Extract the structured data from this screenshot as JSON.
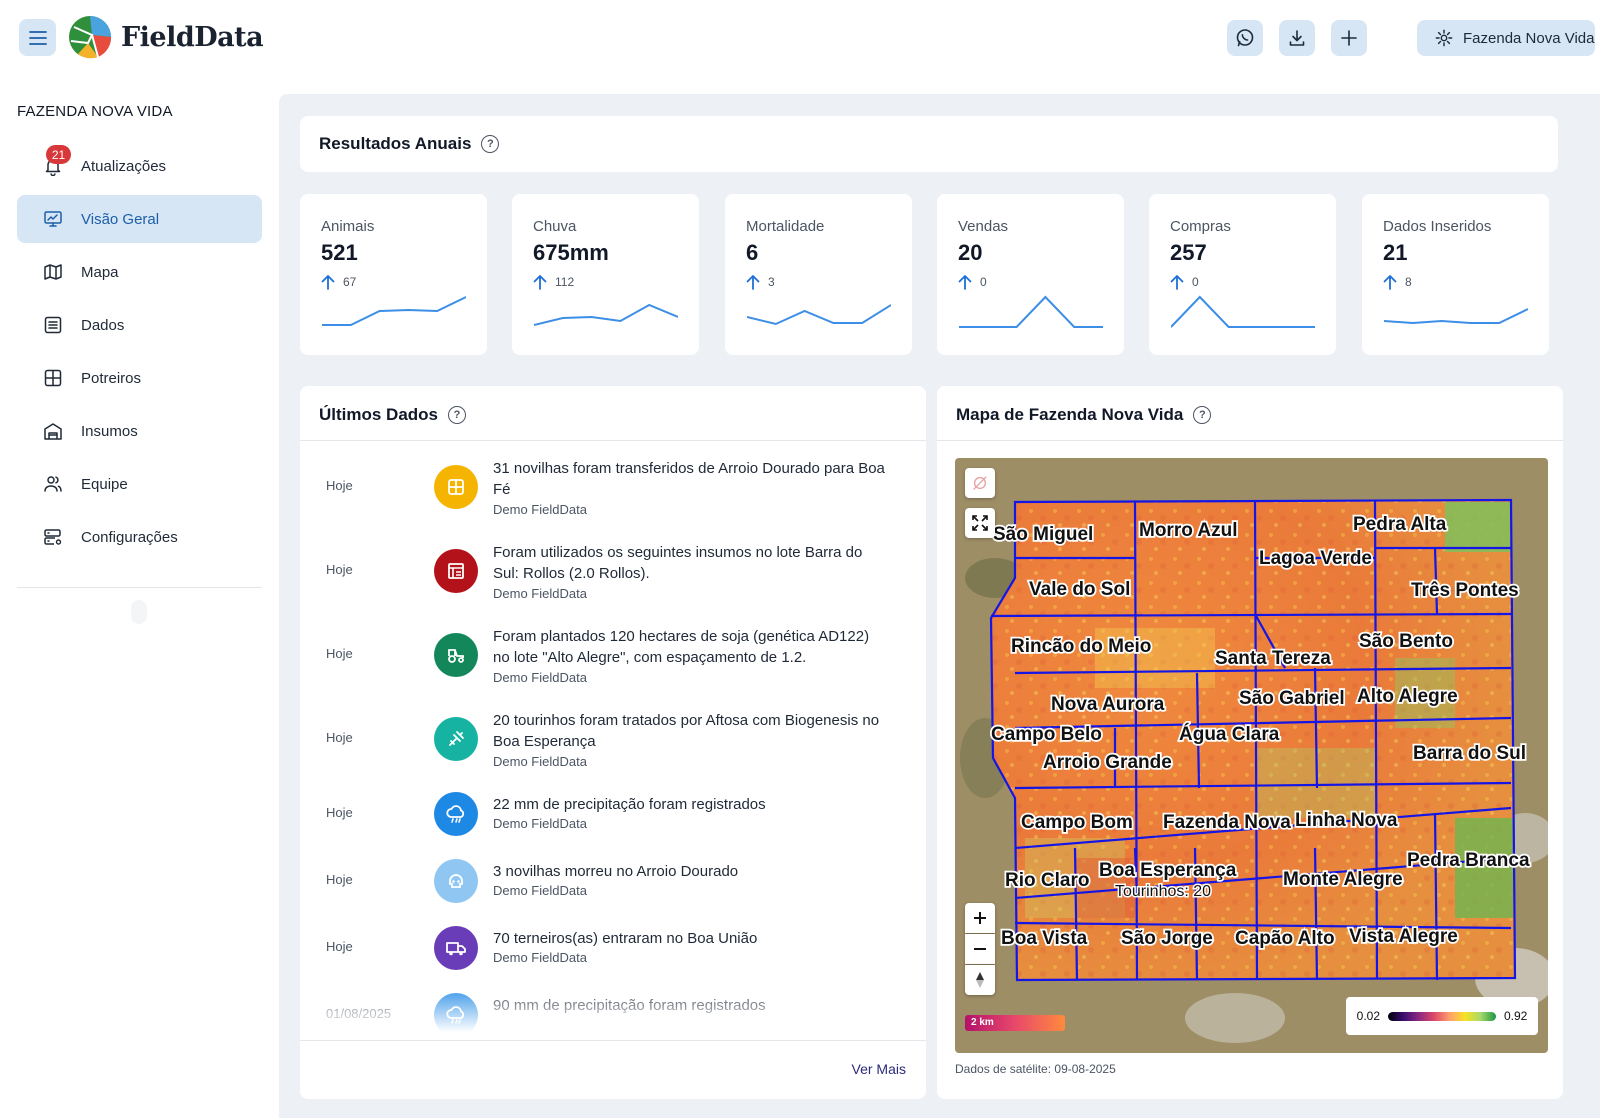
{
  "app": {
    "brand": "FieldData"
  },
  "header": {
    "farm_button_label": "Fazenda Nova Vida"
  },
  "sidebar": {
    "title": "FAZENDA NOVA VIDA",
    "updates_badge": "21",
    "items": [
      {
        "label": "Atualizações",
        "icon": "bell-icon"
      },
      {
        "label": "Visão Geral",
        "icon": "monitor-chart-icon",
        "active": true
      },
      {
        "label": "Mapa",
        "icon": "map-icon"
      },
      {
        "label": "Dados",
        "icon": "list-icon"
      },
      {
        "label": "Potreiros",
        "icon": "grid-icon"
      },
      {
        "label": "Insumos",
        "icon": "warehouse-icon"
      },
      {
        "label": "Equipe",
        "icon": "users-icon"
      },
      {
        "label": "Configurações",
        "icon": "server-gear-icon"
      }
    ]
  },
  "annual": {
    "title": "Resultados Anuais",
    "stats": [
      {
        "label": "Animais",
        "value": "521",
        "delta": "67",
        "trend": [
          2,
          2,
          16,
          17,
          16,
          30
        ]
      },
      {
        "label": "Chuva",
        "value": "675mm",
        "delta": "112",
        "trend": [
          2,
          9,
          10,
          6,
          22,
          10
        ]
      },
      {
        "label": "Mortalidade",
        "value": "6",
        "delta": "3",
        "trend": [
          10,
          3,
          16,
          4,
          4,
          22
        ]
      },
      {
        "label": "Vendas",
        "value": "20",
        "delta": "0",
        "trend": [
          0,
          0,
          0,
          30,
          0,
          0
        ]
      },
      {
        "label": "Compras",
        "value": "257",
        "delta": "0",
        "trend": [
          0,
          30,
          0,
          0,
          0,
          0
        ]
      },
      {
        "label": "Dados Inseridos",
        "value": "21",
        "delta": "8",
        "trend": [
          6,
          4,
          6,
          4,
          4,
          18
        ]
      }
    ]
  },
  "feed": {
    "title": "Últimos Dados",
    "more_label": "Ver Mais",
    "items": [
      {
        "date": "Hoje",
        "text": "31 novilhas foram transferidos de Arroio Dourado para Boa Fé",
        "author": "Demo FieldData",
        "icon": "paddock-icon",
        "color": "#f5b400"
      },
      {
        "date": "Hoje",
        "text": "Foram utilizados os seguintes insumos no lote Barra do Sul: Rollos (2.0 Rollos).",
        "author": "Demo FieldData",
        "icon": "supplies-icon",
        "color": "#b3121a"
      },
      {
        "date": "Hoje",
        "text": "Foram plantados 120 hectares de soja (genética AD122) no lote \"Alto Alegre\", com espaçamento de 1.2.",
        "author": "Demo FieldData",
        "icon": "tractor-icon",
        "color": "#13875a"
      },
      {
        "date": "Hoje",
        "text": "20 tourinhos foram tratados por Aftosa com Biogenesis no Boa Esperança",
        "author": "Demo FieldData",
        "icon": "syringe-icon",
        "color": "#16b3a3"
      },
      {
        "date": "Hoje",
        "text": "22 mm de precipitação foram registrados",
        "author": "Demo FieldData",
        "icon": "rain-cloud-icon",
        "color": "#1e88e5"
      },
      {
        "date": "Hoje",
        "text": "3 novilhas morreu no Arroio Dourado",
        "author": "Demo FieldData",
        "icon": "skull-icon",
        "color": "#8fc7f2"
      },
      {
        "date": "Hoje",
        "text": "70 terneiros(as) entraram no Boa União",
        "author": "Demo FieldData",
        "icon": "truck-icon",
        "color": "#6a3db8"
      },
      {
        "date": "01/08/2025",
        "text": "90 mm de precipitação foram registrados",
        "author": "",
        "icon": "rain-cloud-icon",
        "color": "#1e88e5"
      }
    ]
  },
  "map": {
    "title": "Mapa de Fazenda Nova Vida",
    "satellite_caption": "Dados de satélite: 09-08-2025",
    "scale_label": "2 km",
    "legend_min": "0.02",
    "legend_max": "0.92",
    "paddocks": [
      "São Miguel",
      "Morro Azul",
      "Pedra Alta",
      "Lagoa Verde",
      "Vale do Sol",
      "Três Pontes",
      "Rincão do Meio",
      "São Bento",
      "Santa Tereza",
      "Nova Aurora",
      "São Gabriel",
      "Alto Alegre",
      "Campo Belo",
      "Água Clara",
      "Arroio Grande",
      "Barra do Sul",
      "Campo Bom",
      "Fazenda Nova",
      "Linha Nova",
      "Pedra Branca",
      "Boa Esperança",
      "Rio Claro",
      "Monte Alegre",
      "Boa Vista",
      "São Jorge",
      "Capão Alto",
      "Vista Alegre"
    ],
    "selected_note": "Tourinhos: 20"
  }
}
